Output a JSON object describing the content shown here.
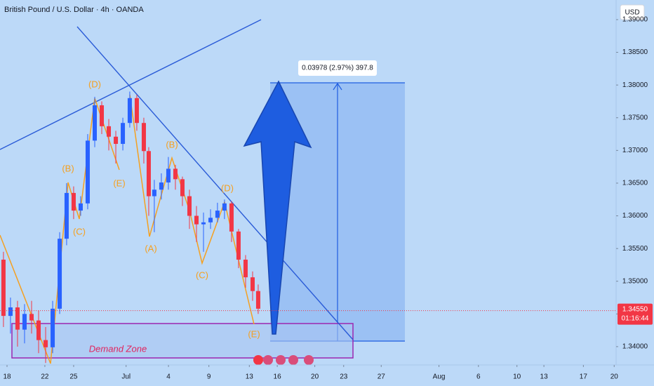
{
  "chart_data": {
    "type": "candlestick",
    "title": "British Pound / U.S. Dollar · 4h · OANDA",
    "currency": "USD",
    "up_color": "#2962ff",
    "down_color": "#f23645",
    "grid": false,
    "x": [
      0.36,
      1.09,
      1.82,
      2.55,
      3.28,
      4.01,
      4.74,
      5.47,
      6.2,
      6.92,
      7.65,
      8.38,
      9.11,
      9.84,
      10.57,
      11.3,
      12.03,
      12.76,
      13.48,
      14.21,
      14.94,
      15.45,
      16.03,
      16.76,
      17.49,
      18.22,
      18.95,
      19.68,
      20.41,
      21.14,
      21.87,
      22.59,
      23.32,
      24.05,
      24.78,
      25.51,
      26.24,
      26.82
    ],
    "open": [
      1.3533,
      1.3447,
      1.346,
      1.3426,
      1.345,
      1.344,
      1.341,
      1.3399,
      1.3458,
      1.3565,
      1.3635,
      1.3608,
      1.3619,
      1.3715,
      1.3769,
      1.3737,
      1.3721,
      1.371,
      1.3742,
      1.378,
      1.3742,
      1.3699,
      1.363,
      1.364,
      1.3651,
      1.3672,
      1.3656,
      1.363,
      1.36,
      1.3587,
      1.359,
      1.3597,
      1.3608,
      1.3619,
      1.3576,
      1.3533,
      1.3506,
      1.3485
    ],
    "high": [
      1.3545,
      1.3475,
      1.347,
      1.3465,
      1.347,
      1.3455,
      1.343,
      1.347,
      1.3575,
      1.365,
      1.3645,
      1.363,
      1.3725,
      1.3782,
      1.3775,
      1.3748,
      1.373,
      1.375,
      1.379,
      1.3785,
      1.375,
      1.3705,
      1.3655,
      1.3665,
      1.369,
      1.3678,
      1.366,
      1.364,
      1.3615,
      1.3605,
      1.361,
      1.362,
      1.3625,
      1.3622,
      1.358,
      1.354,
      1.3515,
      1.3495
    ],
    "low": [
      1.343,
      1.342,
      1.34,
      1.3405,
      1.342,
      1.339,
      1.3375,
      1.339,
      1.345,
      1.3555,
      1.3595,
      1.36,
      1.361,
      1.3705,
      1.3725,
      1.37,
      1.368,
      1.37,
      1.3735,
      1.373,
      1.368,
      1.36,
      1.3575,
      1.3625,
      1.364,
      1.364,
      1.3615,
      1.358,
      1.356,
      1.3545,
      1.358,
      1.359,
      1.3595,
      1.356,
      1.352,
      1.349,
      1.347,
      1.345
    ],
    "close": [
      1.3447,
      1.346,
      1.3426,
      1.345,
      1.344,
      1.341,
      1.3399,
      1.3458,
      1.3565,
      1.3635,
      1.3608,
      1.3619,
      1.3715,
      1.3769,
      1.3737,
      1.3721,
      1.371,
      1.3742,
      1.378,
      1.3742,
      1.3699,
      1.363,
      1.364,
      1.3651,
      1.3672,
      1.3656,
      1.363,
      1.36,
      1.3587,
      1.359,
      1.3597,
      1.3608,
      1.3619,
      1.3576,
      1.3533,
      1.3506,
      1.3485,
      1.3458
    ],
    "xlim": [
      0,
      64
    ],
    "xticks": [
      {
        "value": 0.73,
        "label": "18"
      },
      {
        "value": 4.66,
        "label": "22"
      },
      {
        "value": 7.65,
        "label": "25"
      },
      {
        "value": 13.1,
        "label": "Jul"
      },
      {
        "value": 17.5,
        "label": "4"
      },
      {
        "value": 21.7,
        "label": "9"
      },
      {
        "value": 25.9,
        "label": "13"
      },
      {
        "value": 28.8,
        "label": "16"
      },
      {
        "value": 32.7,
        "label": "20"
      },
      {
        "value": 35.7,
        "label": "23"
      },
      {
        "value": 39.6,
        "label": "27"
      },
      {
        "value": 45.6,
        "label": "Aug"
      },
      {
        "value": 49.7,
        "label": "6"
      },
      {
        "value": 53.7,
        "label": "10"
      },
      {
        "value": 56.5,
        "label": "13"
      },
      {
        "value": 60.6,
        "label": "17"
      },
      {
        "value": 63.8,
        "label": "20"
      }
    ],
    "ylim": [
      1.3372,
      1.393
    ],
    "yticks": [
      {
        "value": 1.34,
        "label": "1.34000"
      },
      {
        "value": 1.345,
        "label": "1.34500"
      },
      {
        "value": 1.35,
        "label": "1.35000"
      },
      {
        "value": 1.355,
        "label": "1.35500"
      },
      {
        "value": 1.36,
        "label": "1.36000"
      },
      {
        "value": 1.365,
        "label": "1.36500"
      },
      {
        "value": 1.37,
        "label": "1.37000"
      },
      {
        "value": 1.375,
        "label": "1.37500"
      },
      {
        "value": 1.38,
        "label": "1.38000"
      },
      {
        "value": 1.385,
        "label": "1.38500"
      },
      {
        "value": 1.39,
        "label": "1.39000"
      }
    ],
    "last_price": {
      "value": 1.3455,
      "label": "1.34550"
    },
    "countdown": "01:16:44",
    "measure_label": "0.03978 (2.97%) 397.8",
    "zone_label": "Demand Zone",
    "wave_labels": [
      "(D)",
      "(B)",
      "(C)",
      "(E)",
      "(B)",
      "(A)",
      "(D)",
      "(C)",
      "(E)"
    ]
  }
}
